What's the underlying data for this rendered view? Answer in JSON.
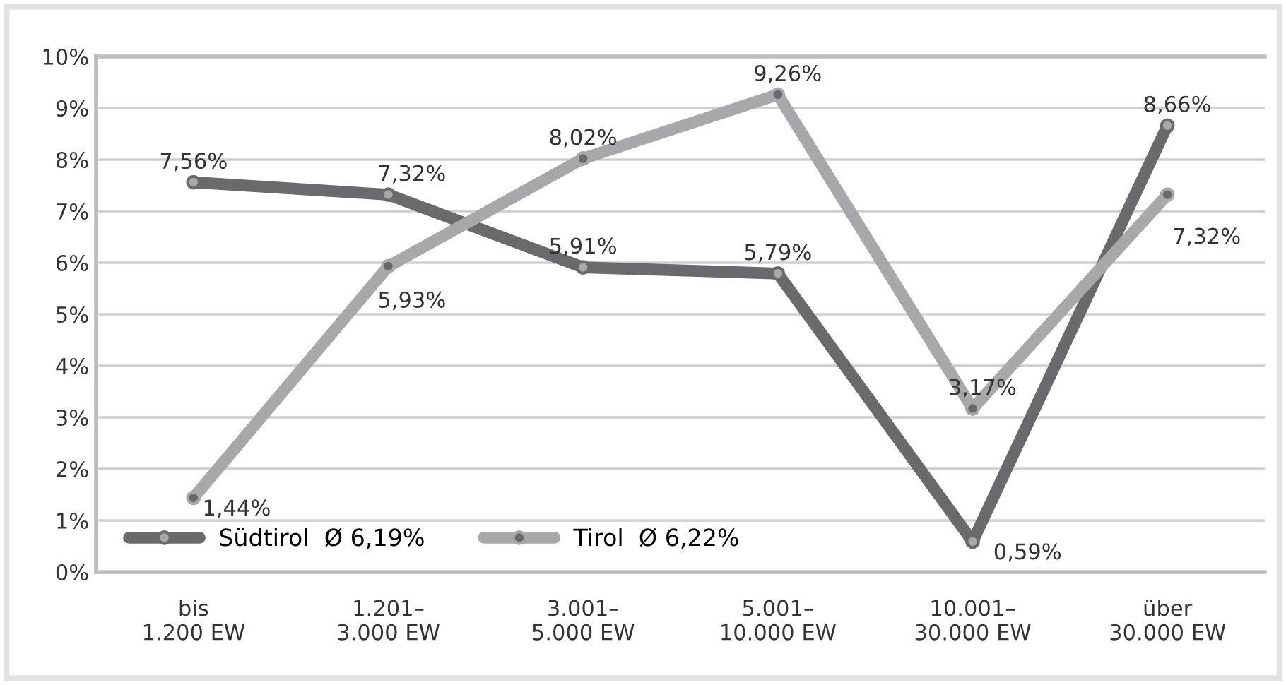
{
  "chart_data": {
    "type": "line",
    "categories": [
      "bis\n1.200 EW",
      "1.201–\n3.000 EW",
      "3.001–\n5.000 EW",
      "5.001–\n10.000 EW",
      "10.001–\n30.000 EW",
      "über\n30.000 EW"
    ],
    "series": [
      {
        "name": "Südtirol  Ø 6,19%",
        "color": "#6a6a6c",
        "values": [
          7.56,
          7.32,
          5.91,
          5.79,
          0.59,
          8.66
        ],
        "value_labels": [
          "7,56%",
          "7,32%",
          "5,91%",
          "5,79%",
          "0,59%",
          "8,66%"
        ]
      },
      {
        "name": "Tirol  Ø 6,22%",
        "color": "#a8a8aa",
        "values": [
          1.44,
          5.93,
          8.02,
          9.26,
          3.17,
          7.32
        ],
        "value_labels": [
          "1,44%",
          "5,93%",
          "8,02%",
          "9,26%",
          "3,17%",
          "7,32%"
        ]
      }
    ],
    "ylim": [
      0,
      10
    ],
    "yticks": [
      {
        "value": 0,
        "label": "0%"
      },
      {
        "value": 1,
        "label": "1%"
      },
      {
        "value": 2,
        "label": "2%"
      },
      {
        "value": 3,
        "label": "3%"
      },
      {
        "value": 4,
        "label": "4%"
      },
      {
        "value": 5,
        "label": "5%"
      },
      {
        "value": 6,
        "label": "6%"
      },
      {
        "value": 7,
        "label": "7%"
      },
      {
        "value": 8,
        "label": "8%"
      },
      {
        "value": 9,
        "label": "9%"
      },
      {
        "value": 10,
        "label": "10%"
      }
    ],
    "grid": "y",
    "legend": "lower left",
    "marker": "circle",
    "line_style": "solid"
  }
}
